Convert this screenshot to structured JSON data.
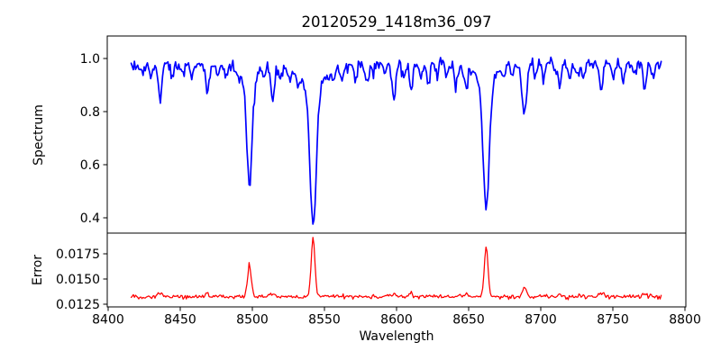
{
  "figure": {
    "background": "#ffffff"
  },
  "chart_data": [
    {
      "type": "line",
      "title": "20120529_1418m36_097",
      "ylabel": "Spectrum",
      "xlabel": "",
      "series_name": "spectrum",
      "color": "#0000ff",
      "line_width": 1.7,
      "xlim": [
        8399.4,
        8800.6
      ],
      "ylim": [
        0.3424,
        1.0847
      ],
      "yticks": [
        1.0,
        0.8,
        0.6,
        0.4
      ],
      "ytick_labels": [
        "1.0",
        "0.8",
        "0.6",
        "0.4"
      ],
      "xticks": [],
      "xtick_labels": [],
      "grid": false,
      "legend": "none",
      "x_start": 8416,
      "x_end": 8784,
      "x_step": 0.75,
      "continuum": 0.978,
      "noise_sigma": 0.0115,
      "absorption_lines": [
        {
          "center": 8498.0,
          "depth": 0.4,
          "sigma": 1.9,
          "wing_depth": 0.05,
          "wing_sigma": 6
        },
        {
          "center": 8542.1,
          "depth": 0.52,
          "sigma": 2.3,
          "wing_depth": 0.075,
          "wing_sigma": 9
        },
        {
          "center": 8662.1,
          "depth": 0.49,
          "sigma": 2.1,
          "wing_depth": 0.06,
          "wing_sigma": 7
        },
        {
          "center": 8688.6,
          "depth": 0.185,
          "sigma": 1.6
        },
        {
          "center": 8424,
          "depth": 0.035,
          "sigma": 1.0
        },
        {
          "center": 8430,
          "depth": 0.045,
          "sigma": 1.0
        },
        {
          "center": 8436,
          "depth": 0.135,
          "sigma": 1.2
        },
        {
          "center": 8444,
          "depth": 0.05,
          "sigma": 1.0
        },
        {
          "center": 8452,
          "depth": 0.04,
          "sigma": 1.0
        },
        {
          "center": 8458,
          "depth": 0.05,
          "sigma": 1.0
        },
        {
          "center": 8469,
          "depth": 0.095,
          "sigma": 1.3
        },
        {
          "center": 8476,
          "depth": 0.04,
          "sigma": 1.0
        },
        {
          "center": 8482,
          "depth": 0.05,
          "sigma": 1.0
        },
        {
          "center": 8490,
          "depth": 0.045,
          "sigma": 1.0
        },
        {
          "center": 8508,
          "depth": 0.04,
          "sigma": 1.0
        },
        {
          "center": 8514,
          "depth": 0.12,
          "sigma": 1.4
        },
        {
          "center": 8520,
          "depth": 0.05,
          "sigma": 1.0
        },
        {
          "center": 8526,
          "depth": 0.055,
          "sigma": 1.0
        },
        {
          "center": 8532,
          "depth": 0.04,
          "sigma": 1.0
        },
        {
          "center": 8556,
          "depth": 0.045,
          "sigma": 1.0
        },
        {
          "center": 8562,
          "depth": 0.055,
          "sigma": 1.0
        },
        {
          "center": 8572,
          "depth": 0.045,
          "sigma": 1.0
        },
        {
          "center": 8579,
          "depth": 0.075,
          "sigma": 1.1
        },
        {
          "center": 8584,
          "depth": 0.04,
          "sigma": 1.0
        },
        {
          "center": 8592,
          "depth": 0.04,
          "sigma": 1.0
        },
        {
          "center": 8598,
          "depth": 0.11,
          "sigma": 1.3
        },
        {
          "center": 8605,
          "depth": 0.045,
          "sigma": 1.0
        },
        {
          "center": 8610,
          "depth": 0.1,
          "sigma": 1.1
        },
        {
          "center": 8617,
          "depth": 0.05,
          "sigma": 1.0
        },
        {
          "center": 8622,
          "depth": 0.075,
          "sigma": 1.1
        },
        {
          "center": 8628,
          "depth": 0.045,
          "sigma": 1.0
        },
        {
          "center": 8635,
          "depth": 0.05,
          "sigma": 1.0
        },
        {
          "center": 8641,
          "depth": 0.08,
          "sigma": 1.1
        },
        {
          "center": 8648,
          "depth": 0.09,
          "sigma": 1.2
        },
        {
          "center": 8674,
          "depth": 0.055,
          "sigma": 1.0
        },
        {
          "center": 8680,
          "depth": 0.045,
          "sigma": 1.0
        },
        {
          "center": 8696,
          "depth": 0.045,
          "sigma": 1.0
        },
        {
          "center": 8702,
          "depth": 0.055,
          "sigma": 1.0
        },
        {
          "center": 8713,
          "depth": 0.085,
          "sigma": 1.2
        },
        {
          "center": 8720,
          "depth": 0.045,
          "sigma": 1.0
        },
        {
          "center": 8726,
          "depth": 0.04,
          "sigma": 1.0
        },
        {
          "center": 8730,
          "depth": 0.05,
          "sigma": 1.0
        },
        {
          "center": 8742,
          "depth": 0.1,
          "sigma": 1.2
        },
        {
          "center": 8750,
          "depth": 0.045,
          "sigma": 1.0
        },
        {
          "center": 8757,
          "depth": 0.065,
          "sigma": 1.0
        },
        {
          "center": 8765,
          "depth": 0.045,
          "sigma": 1.0
        },
        {
          "center": 8772,
          "depth": 0.085,
          "sigma": 1.1
        },
        {
          "center": 8778,
          "depth": 0.04,
          "sigma": 1.0
        }
      ]
    },
    {
      "type": "line",
      "title": "",
      "ylabel": "Error",
      "xlabel": "Wavelength",
      "series_name": "error",
      "color": "#ff0000",
      "line_width": 1.25,
      "xlim": [
        8399.4,
        8800.6
      ],
      "ylim": [
        0.012232,
        0.019554
      ],
      "yticks": [
        0.0175,
        0.015,
        0.0125
      ],
      "ytick_labels": [
        "0.0175",
        "0.0150",
        "0.0125"
      ],
      "xticks": [
        8400,
        8450,
        8500,
        8550,
        8600,
        8650,
        8700,
        8750,
        8800
      ],
      "xtick_labels": [
        "8400",
        "8450",
        "8500",
        "8550",
        "8600",
        "8650",
        "8700",
        "8750",
        "8800"
      ],
      "grid": false,
      "legend": "none",
      "x_start": 8416,
      "x_end": 8784,
      "x_step": 0.75,
      "baseline": 0.01325,
      "noise_sigma": 0.0001,
      "emission_peaks": [
        {
          "center": 8436,
          "height": 0.0004,
          "sigma": 1.6
        },
        {
          "center": 8469,
          "height": 0.00025,
          "sigma": 1.5
        },
        {
          "center": 8498.0,
          "height": 0.0033,
          "sigma": 1.2
        },
        {
          "center": 8514,
          "height": 0.0003,
          "sigma": 1.4
        },
        {
          "center": 8542.1,
          "height": 0.0059,
          "sigma": 1.3
        },
        {
          "center": 8598,
          "height": 0.0003,
          "sigma": 1.4
        },
        {
          "center": 8610,
          "height": 0.0003,
          "sigma": 1.3
        },
        {
          "center": 8648,
          "height": 0.0003,
          "sigma": 1.3
        },
        {
          "center": 8662.1,
          "height": 0.005,
          "sigma": 1.25
        },
        {
          "center": 8688.6,
          "height": 0.00085,
          "sigma": 1.5
        },
        {
          "center": 8713,
          "height": 0.0002,
          "sigma": 1.3
        },
        {
          "center": 8742,
          "height": 0.00035,
          "sigma": 1.3
        },
        {
          "center": 8772,
          "height": 0.0003,
          "sigma": 1.3
        }
      ]
    }
  ]
}
